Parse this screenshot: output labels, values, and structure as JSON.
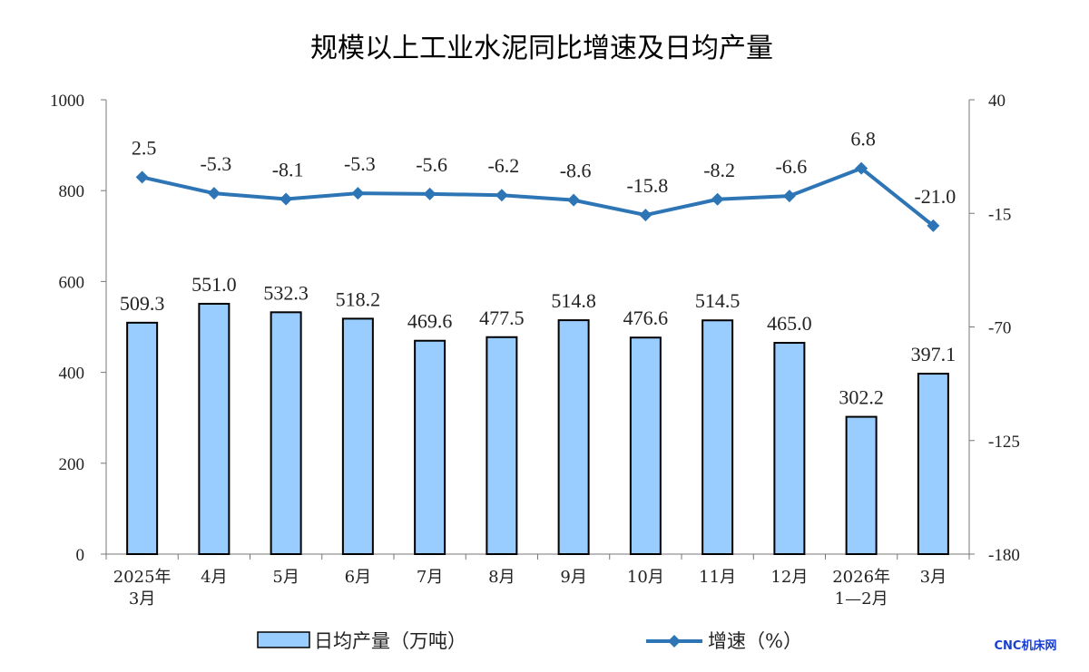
{
  "chart_data": {
    "type": "bar+line",
    "title": "规模以上工业水泥同比增速及日均产量",
    "categories": [
      [
        "2025年",
        "3月"
      ],
      [
        "4月"
      ],
      [
        "5月"
      ],
      [
        "6月"
      ],
      [
        "7月"
      ],
      [
        "8月"
      ],
      [
        "9月"
      ],
      [
        "10月"
      ],
      [
        "11月"
      ],
      [
        "12月"
      ],
      [
        "2026年",
        "1—2月"
      ],
      [
        "3月"
      ]
    ],
    "series": [
      {
        "name": "日均产量（万吨）",
        "type": "bar",
        "axis": "left",
        "color": "#99ccff",
        "values": [
          509.3,
          551.0,
          532.3,
          518.2,
          469.6,
          477.5,
          514.8,
          476.6,
          514.5,
          465.0,
          302.2,
          397.1
        ],
        "labels": [
          "509.3",
          "551.0",
          "532.3",
          "518.2",
          "469.6",
          "477.5",
          "514.8",
          "476.6",
          "514.5",
          "465.0",
          "302.2",
          "397.1"
        ]
      },
      {
        "name": "增速（%）",
        "type": "line",
        "axis": "right",
        "color": "#2e75b6",
        "values": [
          2.5,
          -5.3,
          -8.1,
          -5.3,
          -5.6,
          -6.2,
          -8.6,
          -15.8,
          -8.2,
          -6.6,
          6.8,
          -21.0
        ],
        "labels": [
          "2.5",
          "-5.3",
          "-8.1",
          "-5.3",
          "-5.6",
          "-6.2",
          "-8.6",
          "-15.8",
          "-8.2",
          "-6.6",
          "6.8",
          "-21.0"
        ]
      }
    ],
    "y_left": {
      "min": 0,
      "max": 1000,
      "ticks": [
        "0",
        "200",
        "400",
        "600",
        "800",
        "1000"
      ]
    },
    "y_right": {
      "min": -180,
      "max": 40,
      "ticks": [
        "-180",
        "-125",
        "-70",
        "-15",
        "40"
      ]
    },
    "grid": false,
    "legend_position": "bottom"
  },
  "watermark": "CNC机床网"
}
